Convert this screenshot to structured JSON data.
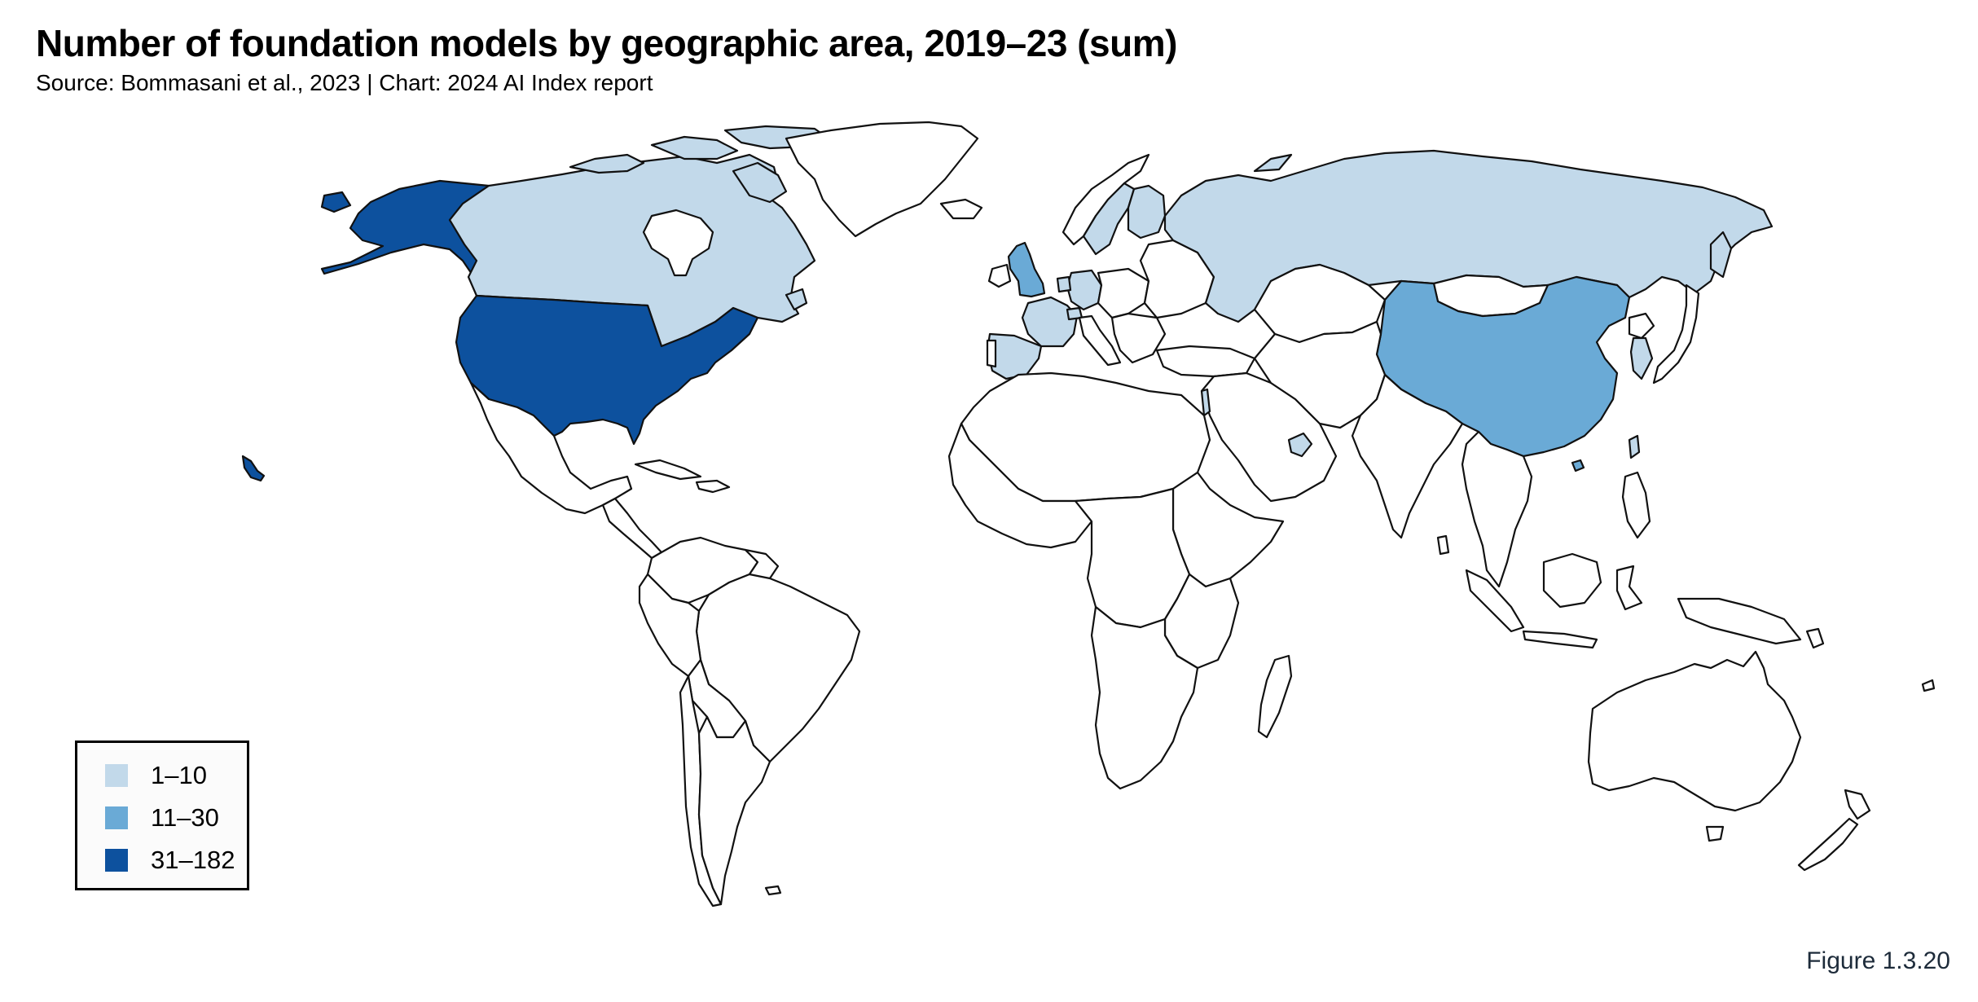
{
  "header": {
    "title": "Number of foundation models by geographic area, 2019–23 (sum)",
    "subtitle": "Source: Bommasani et al., 2023 | Chart: 2024 AI Index report"
  },
  "figure_label": "Figure 1.3.20",
  "colors": {
    "no_data": "#ffffff",
    "bin_1_10": "#c2d9ea",
    "bin_11_30": "#6aaad6",
    "bin_31_182": "#0d519e",
    "border": "#111111"
  },
  "legend": {
    "items": [
      {
        "label": "1–10",
        "color": "#c2d9ea"
      },
      {
        "label": "11–30",
        "color": "#6aaad6"
      },
      {
        "label": "31–182",
        "color": "#0d519e"
      }
    ]
  },
  "chart_data": {
    "type": "choropleth",
    "bins": [
      "1–10",
      "11–30",
      "31–182"
    ],
    "regions": [
      {
        "id": "united-states",
        "bin": "31–182"
      },
      {
        "id": "alaska",
        "bin": "31–182"
      },
      {
        "id": "hawaii",
        "bin": "31–182"
      },
      {
        "id": "united-kingdom",
        "bin": "11–30"
      },
      {
        "id": "china",
        "bin": "11–30"
      },
      {
        "id": "hong-kong",
        "bin": "11–30"
      },
      {
        "id": "canada",
        "bin": "1–10"
      },
      {
        "id": "russia",
        "bin": "1–10"
      },
      {
        "id": "france",
        "bin": "1–10"
      },
      {
        "id": "germany",
        "bin": "1–10"
      },
      {
        "id": "spain",
        "bin": "1–10"
      },
      {
        "id": "sweden",
        "bin": "1–10"
      },
      {
        "id": "finland",
        "bin": "1–10"
      },
      {
        "id": "netherlands",
        "bin": "1–10"
      },
      {
        "id": "switzerland",
        "bin": "1–10"
      },
      {
        "id": "israel",
        "bin": "1–10"
      },
      {
        "id": "united-arab-emirates",
        "bin": "1–10"
      },
      {
        "id": "south-korea",
        "bin": "1–10"
      },
      {
        "id": "taiwan",
        "bin": "1–10"
      },
      {
        "id": "japan",
        "bin": "none"
      },
      {
        "id": "india",
        "bin": "none"
      }
    ]
  }
}
